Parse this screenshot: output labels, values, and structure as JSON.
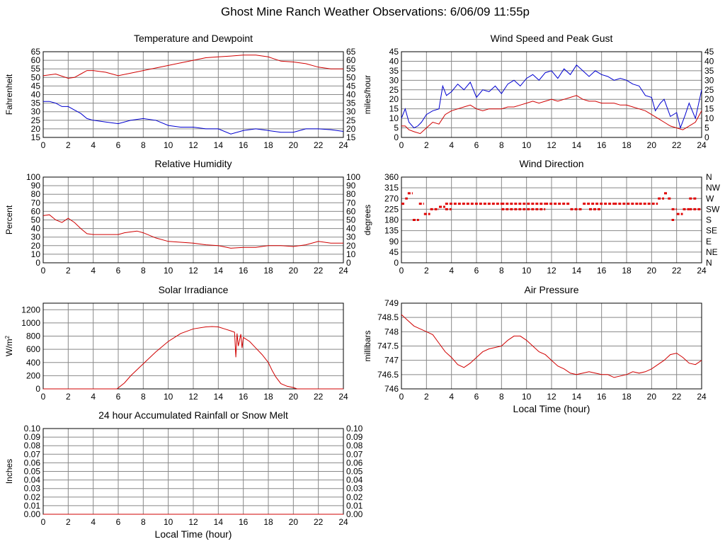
{
  "page": {
    "title": "Ghost Mine Ranch Weather Observations: 6/06/09 11:55p"
  },
  "chart_data": [
    {
      "id": "temperature",
      "type": "line",
      "title": "Temperature and Dewpoint",
      "ylabel": "Fahrenheit",
      "xlabel": "",
      "xlim": [
        0,
        24
      ],
      "ylim": [
        15,
        65
      ],
      "yticks": [
        15,
        20,
        25,
        30,
        35,
        40,
        45,
        50,
        55,
        60,
        65
      ],
      "xticks": [
        0,
        2,
        4,
        6,
        8,
        10,
        12,
        14,
        16,
        18,
        20,
        22,
        24
      ],
      "right_axis": true,
      "grid": true,
      "series": [
        {
          "color": "#d00000",
          "x": [
            0,
            1,
            2,
            2.5,
            3,
            3.5,
            4,
            5,
            6,
            7,
            8,
            9,
            10,
            11,
            12,
            13,
            14,
            15,
            16,
            17,
            18,
            19,
            20,
            21,
            22,
            23,
            24
          ],
          "y": [
            51,
            52,
            49.5,
            50,
            52,
            54,
            54,
            53,
            51,
            52.5,
            54,
            55.5,
            57,
            58.5,
            60,
            61.5,
            62,
            62.5,
            63,
            63,
            62,
            59.5,
            59,
            58,
            56,
            55,
            55
          ]
        },
        {
          "color": "#0000d0",
          "x": [
            0,
            0.5,
            1,
            1.5,
            2,
            2.5,
            3,
            3.5,
            4,
            5,
            6,
            7,
            8,
            9,
            10,
            11,
            12,
            13,
            14,
            15,
            16,
            17,
            18,
            19,
            20,
            21,
            22,
            23,
            24
          ],
          "y": [
            36,
            36,
            35,
            33,
            33,
            31,
            29,
            26,
            25,
            24,
            23,
            25,
            26,
            25,
            22,
            21,
            21,
            20,
            20,
            17,
            19,
            20,
            19,
            18,
            18,
            20,
            20,
            19.5,
            18.5
          ]
        }
      ]
    },
    {
      "id": "wind-speed",
      "type": "line",
      "title": "Wind Speed and Peak Gust",
      "ylabel": "miles/hour",
      "xlabel": "",
      "xlim": [
        0,
        24
      ],
      "ylim": [
        0,
        45
      ],
      "yticks": [
        0,
        5,
        10,
        15,
        20,
        25,
        30,
        35,
        40,
        45
      ],
      "xticks": [
        0,
        2,
        4,
        6,
        8,
        10,
        12,
        14,
        16,
        18,
        20,
        22,
        24
      ],
      "right_axis": true,
      "grid": true,
      "series": [
        {
          "color": "#0000d0",
          "x": [
            0,
            0.3,
            0.6,
            1,
            1.3,
            1.6,
            2,
            2.5,
            3,
            3.3,
            3.6,
            4,
            4.5,
            5,
            5.5,
            6,
            6.5,
            7,
            7.5,
            8,
            8.5,
            9,
            9.5,
            10,
            10.5,
            11,
            11.5,
            12,
            12.5,
            13,
            13.5,
            14,
            14.5,
            15,
            15.5,
            16,
            16.5,
            17,
            17.5,
            18,
            18.5,
            19,
            19.5,
            20,
            20.3,
            20.7,
            21,
            21.5,
            22,
            22.3,
            22.7,
            23,
            23.5,
            24
          ],
          "y": [
            10,
            15,
            8,
            5,
            6,
            8,
            12,
            14,
            15,
            27,
            22,
            24,
            28,
            25,
            29,
            21,
            25,
            24,
            27,
            23,
            28,
            30,
            27,
            31,
            33,
            30,
            34,
            35,
            31,
            36,
            33,
            38,
            35,
            32,
            35,
            33,
            32,
            30,
            31,
            30,
            28,
            27,
            22,
            21,
            14,
            18,
            20,
            11,
            13,
            5,
            12,
            18,
            10,
            25
          ]
        },
        {
          "color": "#d00000",
          "x": [
            0,
            0.3,
            0.6,
            1,
            1.5,
            2,
            2.5,
            3,
            3.5,
            4,
            4.5,
            5,
            5.5,
            6,
            6.5,
            7,
            7.5,
            8,
            8.5,
            9,
            9.5,
            10,
            10.5,
            11,
            11.5,
            12,
            12.5,
            13,
            13.5,
            14,
            14.5,
            15,
            15.5,
            16,
            16.5,
            17,
            17.5,
            18,
            18.5,
            19,
            19.5,
            20,
            20.5,
            21,
            21.5,
            22,
            22.5,
            23,
            23.5,
            24
          ],
          "y": [
            6,
            6,
            4,
            3,
            2,
            5,
            8,
            7,
            12,
            14,
            15,
            16,
            17,
            15,
            14,
            15,
            15,
            15,
            16,
            16,
            17,
            18,
            19,
            18,
            19,
            20,
            19,
            20,
            21,
            22,
            20,
            19,
            19,
            18,
            18,
            18,
            17,
            17,
            16,
            15,
            14,
            12,
            10,
            8,
            6,
            5,
            4,
            6,
            8,
            14
          ]
        }
      ]
    },
    {
      "id": "humidity",
      "type": "line",
      "title": "Relative Humidity",
      "ylabel": "Percent",
      "xlabel": "",
      "xlim": [
        0,
        24
      ],
      "ylim": [
        0,
        100
      ],
      "yticks": [
        0,
        10,
        20,
        30,
        40,
        50,
        60,
        70,
        80,
        90,
        100
      ],
      "xticks": [
        0,
        2,
        4,
        6,
        8,
        10,
        12,
        14,
        16,
        18,
        20,
        22,
        24
      ],
      "right_axis": true,
      "grid": true,
      "series": [
        {
          "color": "#d00000",
          "x": [
            0,
            0.5,
            1,
            1.5,
            2,
            2.5,
            3,
            3.5,
            4,
            5,
            6,
            6.5,
            7,
            7.5,
            8,
            9,
            10,
            11,
            12,
            13,
            14,
            15,
            16,
            17,
            18,
            19,
            20,
            21,
            22,
            23,
            24
          ],
          "y": [
            55,
            56,
            50,
            47,
            52,
            47,
            40,
            34,
            33,
            33,
            33,
            35,
            36,
            37,
            35,
            29,
            25,
            24,
            23,
            21,
            20,
            17,
            18,
            18,
            20,
            20,
            19,
            21,
            25,
            23,
            23
          ]
        }
      ]
    },
    {
      "id": "wind-direction",
      "type": "scatter",
      "title": "Wind Direction",
      "ylabel": "degrees",
      "xlabel": "",
      "xlim": [
        0,
        24
      ],
      "ylim": [
        0,
        360
      ],
      "yticks": [
        0,
        45,
        90,
        135,
        180,
        225,
        270,
        315,
        360
      ],
      "xticks": [
        0,
        2,
        4,
        6,
        8,
        10,
        12,
        14,
        16,
        18,
        20,
        22,
        24
      ],
      "right_labels": [
        "N",
        "NE",
        "E",
        "SE",
        "S",
        "SW",
        "W",
        "NW",
        "N"
      ],
      "grid": true,
      "series": [
        {
          "color": "#e00000",
          "segments": [
            [
              0.0,
              0.3,
              248
            ],
            [
              0.3,
              0.5,
              270
            ],
            [
              0.5,
              0.9,
              292
            ],
            [
              0.9,
              1.4,
              180
            ],
            [
              1.4,
              1.8,
              248
            ],
            [
              1.8,
              2.3,
              205
            ],
            [
              2.3,
              3.0,
              225
            ],
            [
              3.0,
              3.5,
              235
            ],
            [
              3.5,
              4.0,
              225
            ],
            [
              3.5,
              8.0,
              248
            ],
            [
              8.0,
              11.5,
              248
            ],
            [
              8.0,
              11.5,
              225
            ],
            [
              11.5,
              13.5,
              248
            ],
            [
              13.5,
              14.5,
              225
            ],
            [
              14.5,
              17.0,
              248
            ],
            [
              15.0,
              16.0,
              225
            ],
            [
              17.0,
              19.0,
              248
            ],
            [
              19.0,
              20.5,
              248
            ],
            [
              20.5,
              21.0,
              270
            ],
            [
              21.0,
              21.3,
              292
            ],
            [
              21.3,
              21.6,
              270
            ],
            [
              21.6,
              22.0,
              225
            ],
            [
              21.6,
              21.8,
              180
            ],
            [
              22.0,
              22.5,
              205
            ],
            [
              22.5,
              23.0,
              225
            ],
            [
              23.0,
              23.6,
              270
            ],
            [
              23.0,
              24.0,
              225
            ]
          ]
        }
      ]
    },
    {
      "id": "solar",
      "type": "line",
      "title": "Solar Irradiance",
      "ylabel": "W/m2",
      "xlabel": "",
      "xlim": [
        0,
        24
      ],
      "ylim": [
        0,
        1300
      ],
      "yticks": [
        0,
        200,
        400,
        600,
        800,
        1000,
        1200
      ],
      "xticks": [
        0,
        2,
        4,
        6,
        8,
        10,
        12,
        14,
        16,
        18,
        20,
        22,
        24
      ],
      "right_axis": false,
      "grid": true,
      "series": [
        {
          "color": "#d00000",
          "x": [
            0,
            5.9,
            6.5,
            7,
            8,
            9,
            10,
            11,
            12,
            13,
            13.5,
            14,
            14.5,
            15,
            15.3,
            15.4,
            15.5,
            15.6,
            15.8,
            15.9,
            16,
            16.5,
            17,
            17.5,
            18,
            18.3,
            18.6,
            19,
            19.5,
            20,
            20.3,
            21,
            24
          ],
          "y": [
            0,
            0,
            90,
            200,
            380,
            560,
            720,
            840,
            910,
            940,
            945,
            940,
            910,
            880,
            860,
            480,
            840,
            650,
            830,
            620,
            780,
            720,
            620,
            520,
            400,
            280,
            180,
            80,
            40,
            20,
            0,
            0,
            0
          ]
        }
      ]
    },
    {
      "id": "pressure",
      "type": "line",
      "title": "Air Pressure",
      "ylabel": "millibars",
      "xlabel": "Local Time (hour)",
      "xlim": [
        0,
        24
      ],
      "ylim": [
        746.0,
        749.0
      ],
      "yticks": [
        746.0,
        746.5,
        747.0,
        747.5,
        748.0,
        748.5,
        749.0
      ],
      "xticks": [
        0,
        2,
        4,
        6,
        8,
        10,
        12,
        14,
        16,
        18,
        20,
        22,
        24
      ],
      "right_axis": false,
      "grid": true,
      "series": [
        {
          "color": "#d00000",
          "x": [
            0,
            0.5,
            1,
            1.5,
            2,
            2.5,
            3,
            3.5,
            4,
            4.5,
            5,
            5.5,
            6,
            6.5,
            7,
            7.5,
            8,
            8.5,
            9,
            9.5,
            10,
            10.5,
            11,
            11.5,
            12,
            12.5,
            13,
            13.5,
            14,
            14.5,
            15,
            15.5,
            16,
            16.5,
            17,
            17.5,
            18,
            18.5,
            19,
            19.5,
            20,
            20.5,
            21,
            21.5,
            22,
            22.5,
            23,
            23.5,
            24
          ],
          "y": [
            748.6,
            748.4,
            748.2,
            748.1,
            748.0,
            747.9,
            747.6,
            747.3,
            747.1,
            746.85,
            746.75,
            746.9,
            747.1,
            747.3,
            747.4,
            747.45,
            747.5,
            747.7,
            747.85,
            747.85,
            747.7,
            747.5,
            747.3,
            747.2,
            747.0,
            746.8,
            746.7,
            746.55,
            746.5,
            746.55,
            746.6,
            746.55,
            746.5,
            746.5,
            746.4,
            746.45,
            746.5,
            746.6,
            746.55,
            746.6,
            746.7,
            746.85,
            747.0,
            747.2,
            747.25,
            747.1,
            746.9,
            746.85,
            747.0
          ]
        }
      ]
    },
    {
      "id": "rainfall",
      "type": "line",
      "title": "24 hour Accumulated Rainfall or Snow Melt",
      "ylabel": "Inches",
      "xlabel": "Local Time (hour)",
      "xlim": [
        0,
        24
      ],
      "ylim": [
        0,
        0.1
      ],
      "yticks": [
        0.0,
        0.01,
        0.02,
        0.03,
        0.04,
        0.05,
        0.06,
        0.07,
        0.08,
        0.09,
        0.1
      ],
      "ytick_decimals": 2,
      "xticks": [
        0,
        2,
        4,
        6,
        8,
        10,
        12,
        14,
        16,
        18,
        20,
        22,
        24
      ],
      "right_axis": true,
      "grid": true,
      "series": [
        {
          "color": "#d00000",
          "x": [
            0,
            24
          ],
          "y": [
            0,
            0
          ]
        }
      ]
    }
  ]
}
